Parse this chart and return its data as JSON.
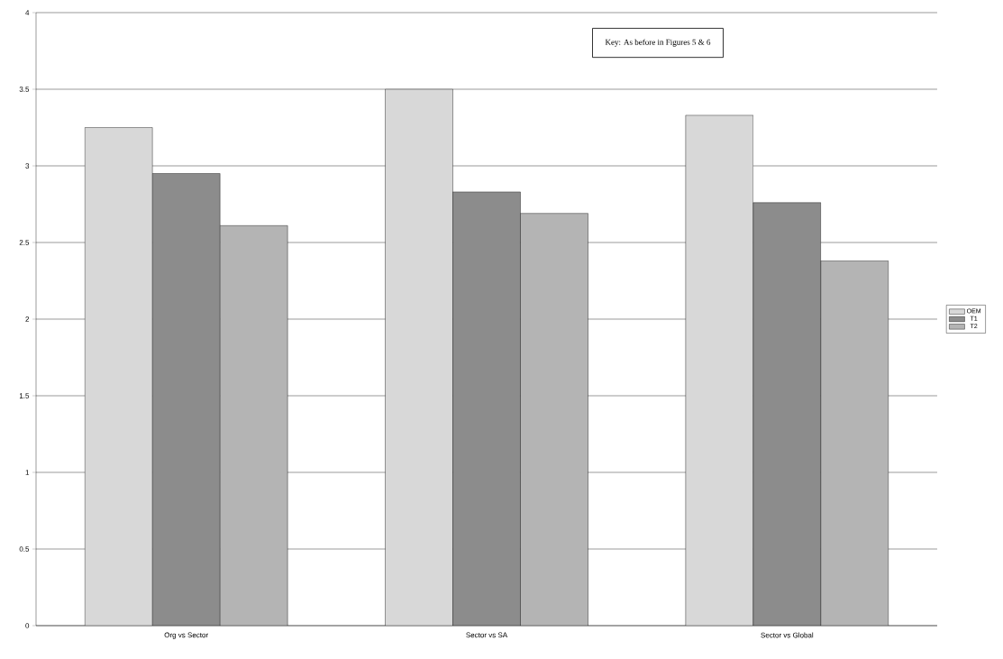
{
  "chart_data": {
    "type": "bar",
    "categories": [
      "Org vs Sector",
      "Sector vs SA",
      "Sector vs Global"
    ],
    "series": [
      {
        "name": "OEM",
        "color": "#d8d8d8",
        "values": [
          3.25,
          3.5,
          3.33
        ]
      },
      {
        "name": "T1",
        "color": "#8c8c8c",
        "values": [
          2.95,
          2.83,
          2.76
        ]
      },
      {
        "name": "T2",
        "color": "#b4b4b4",
        "values": [
          2.61,
          2.69,
          2.38
        ]
      }
    ],
    "ylim": [
      0,
      4
    ],
    "yticks": [
      0,
      0.5,
      1,
      1.5,
      2,
      2.5,
      3,
      3.5,
      4
    ],
    "grid": "y",
    "legend": "right",
    "annotations": [
      "Key: As before in Figures 5 & 6"
    ]
  }
}
